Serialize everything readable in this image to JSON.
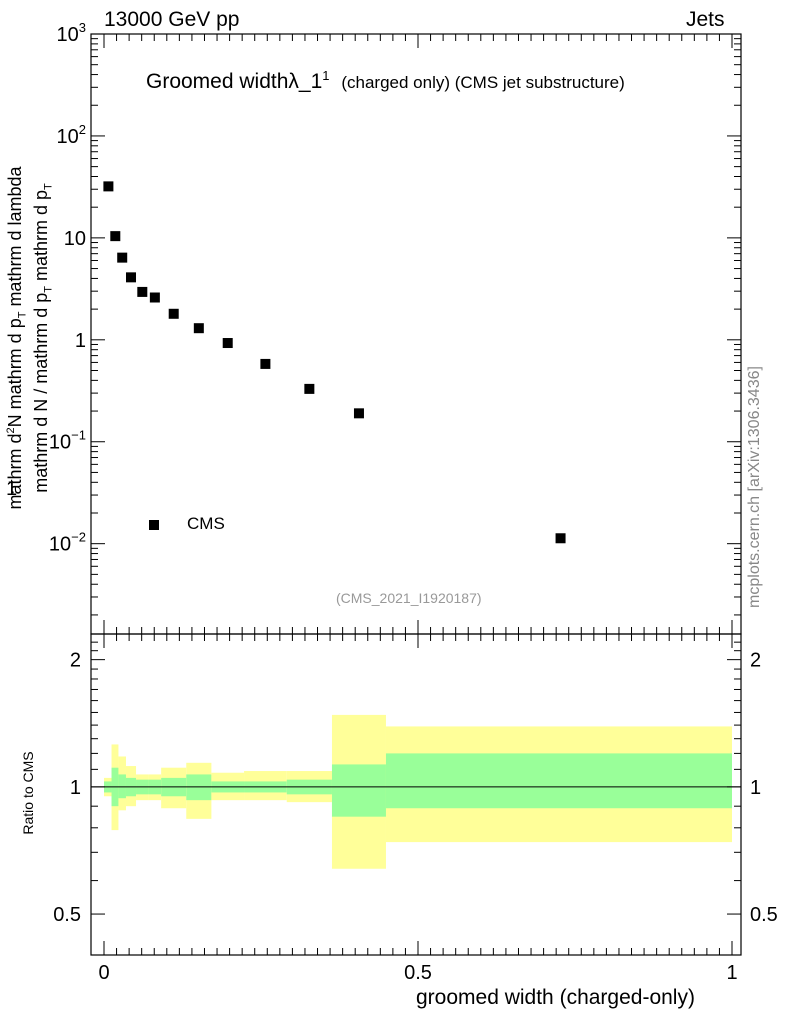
{
  "header": {
    "energy_label": "13000 GeV pp",
    "category_label": "Jets"
  },
  "plot_title": {
    "main": "Groomed width",
    "symbol": "λ_1",
    "superscript": "1",
    "detail": "(charged only) (CMS jet substructure)"
  },
  "y_axis_label": {
    "numerator": "1",
    "frac_num": "mathrm d",
    "frac_num_sup": "2",
    "frac_num_end": "N",
    "frac_den": "mathrm d p",
    "frac_den_sub": "T",
    "frac_den_end": " mathrm d lambda",
    "denominator_prefix": "mathrm d N / mathrm d p",
    "denominator_sub": "T",
    "denominator_suffix": " mathrm d p",
    "denominator_sub2": "T"
  },
  "side_label": "mcplots.cern.ch [arXiv:1306.3436]",
  "analysis_id": "(CMS_2021_I1920187)",
  "legend": {
    "entries": [
      "CMS"
    ]
  },
  "ratio_axis_label": "Ratio to CMS",
  "x_axis_label": "groomed width (charged-only)",
  "colors": {
    "inner_band": "#99ff99",
    "outer_band": "#ffff99",
    "markers": "#000000"
  },
  "chart_data": [
    {
      "type": "scatter",
      "title": "Groomed width λ_1^1 (charged only) (CMS jet substructure)",
      "xlim": [
        0,
        1
      ],
      "ylim": [
        0.0013,
        1000
      ],
      "log_y": true,
      "y_ticks": [
        {
          "value": 0.01,
          "label": "10",
          "exp": "−2"
        },
        {
          "value": 0.1,
          "label": "10",
          "exp": "−1"
        },
        {
          "value": 1,
          "label": "1",
          "exp": ""
        },
        {
          "value": 10,
          "label": "10",
          "exp": ""
        },
        {
          "value": 100,
          "label": "10",
          "exp": "2"
        },
        {
          "value": 1000,
          "label": "10",
          "exp": "3"
        }
      ],
      "series": [
        {
          "name": "CMS",
          "points": [
            {
              "x": 0.007,
              "y": 32
            },
            {
              "x": 0.018,
              "y": 10.4
            },
            {
              "x": 0.029,
              "y": 6.4
            },
            {
              "x": 0.043,
              "y": 4.1
            },
            {
              "x": 0.061,
              "y": 2.95
            },
            {
              "x": 0.081,
              "y": 2.6
            },
            {
              "x": 0.111,
              "y": 1.8
            },
            {
              "x": 0.151,
              "y": 1.3
            },
            {
              "x": 0.197,
              "y": 0.93
            },
            {
              "x": 0.257,
              "y": 0.58
            },
            {
              "x": 0.327,
              "y": 0.33
            },
            {
              "x": 0.406,
              "y": 0.19
            },
            {
              "x": 0.727,
              "y": 0.0113
            }
          ]
        }
      ]
    },
    {
      "type": "area",
      "title": "Ratio to CMS",
      "xlim": [
        0,
        1
      ],
      "ylim": [
        0.4,
        2.3
      ],
      "log_y": true,
      "x_ticks": [
        {
          "value": 0,
          "label": "0"
        },
        {
          "value": 0.5,
          "label": "0.5"
        },
        {
          "value": 1,
          "label": "1"
        }
      ],
      "y_ticks": [
        {
          "value": 0.5,
          "label": "0.5"
        },
        {
          "value": 1,
          "label": "1"
        },
        {
          "value": 2,
          "label": "2"
        }
      ],
      "reference_line": 1,
      "bins": [
        {
          "x0": 0.0,
          "x1": 0.012,
          "inner": [
            0.97,
            1.03
          ],
          "outer": [
            0.95,
            1.05
          ]
        },
        {
          "x0": 0.012,
          "x1": 0.023,
          "inner": [
            0.9,
            1.11
          ],
          "outer": [
            0.79,
            1.26
          ]
        },
        {
          "x0": 0.023,
          "x1": 0.035,
          "inner": [
            0.94,
            1.07
          ],
          "outer": [
            0.88,
            1.18
          ]
        },
        {
          "x0": 0.035,
          "x1": 0.051,
          "inner": [
            0.95,
            1.05
          ],
          "outer": [
            0.9,
            1.12
          ]
        },
        {
          "x0": 0.051,
          "x1": 0.071,
          "inner": [
            0.96,
            1.04
          ],
          "outer": [
            0.93,
            1.07
          ]
        },
        {
          "x0": 0.071,
          "x1": 0.091,
          "inner": [
            0.96,
            1.04
          ],
          "outer": [
            0.93,
            1.07
          ]
        },
        {
          "x0": 0.091,
          "x1": 0.131,
          "inner": [
            0.95,
            1.05
          ],
          "outer": [
            0.89,
            1.11
          ]
        },
        {
          "x0": 0.131,
          "x1": 0.171,
          "inner": [
            0.93,
            1.07
          ],
          "outer": [
            0.84,
            1.14
          ]
        },
        {
          "x0": 0.171,
          "x1": 0.223,
          "inner": [
            0.97,
            1.03
          ],
          "outer": [
            0.93,
            1.08
          ]
        },
        {
          "x0": 0.223,
          "x1": 0.291,
          "inner": [
            0.97,
            1.03
          ],
          "outer": [
            0.93,
            1.09
          ]
        },
        {
          "x0": 0.291,
          "x1": 0.363,
          "inner": [
            0.96,
            1.04
          ],
          "outer": [
            0.92,
            1.09
          ]
        },
        {
          "x0": 0.363,
          "x1": 0.449,
          "inner": [
            0.85,
            1.13
          ],
          "outer": [
            0.64,
            1.48
          ]
        },
        {
          "x0": 0.449,
          "x1": 1.0,
          "inner": [
            0.89,
            1.2
          ],
          "outer": [
            0.74,
            1.39
          ]
        }
      ]
    }
  ]
}
